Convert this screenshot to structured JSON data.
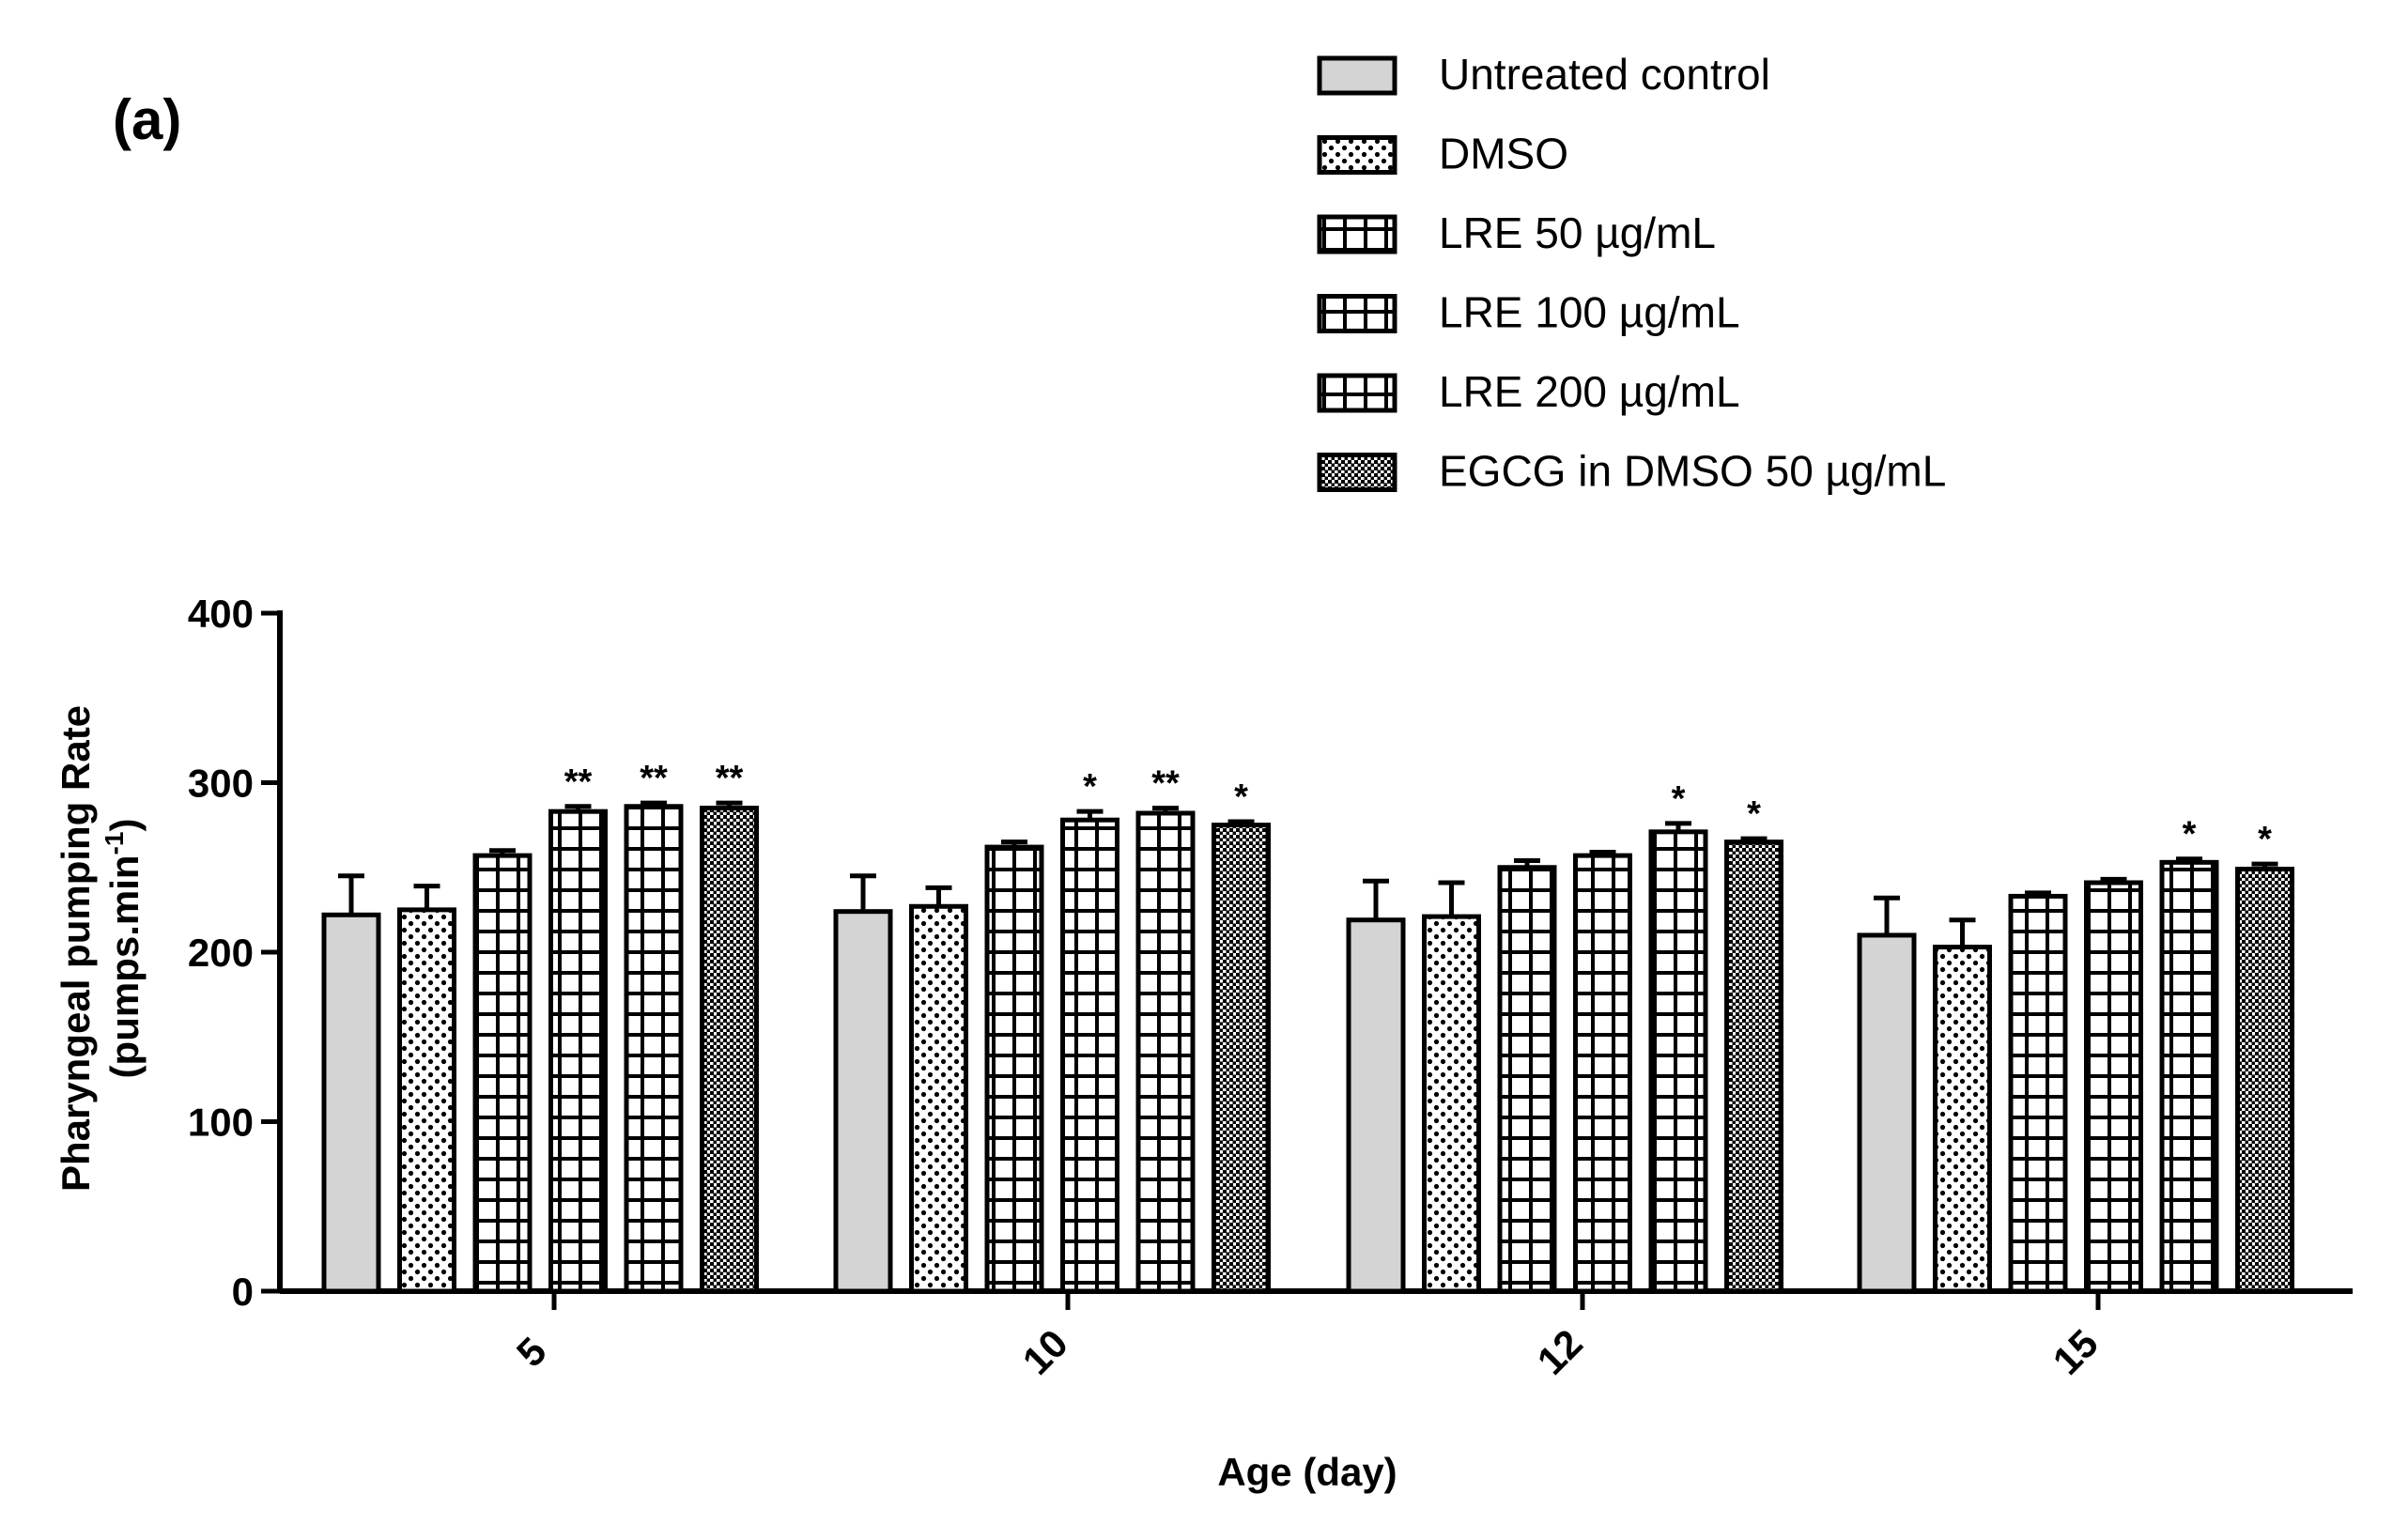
{
  "panel_label": "(a)",
  "chart_data": {
    "type": "bar",
    "title": "",
    "xlabel": "Age (day)",
    "ylabel_line1": "Pharyngeal pumping Rate",
    "ylabel_line2_main": "(pumps.min",
    "ylabel_line2_sup": "-1",
    "ylabel_line2_end": ")",
    "ylim": [
      0,
      400
    ],
    "yticks": [
      "0",
      "100",
      "200",
      "300",
      "400"
    ],
    "categories": [
      "5",
      "10",
      "12",
      "15"
    ],
    "series": [
      {
        "name": "Untreated control",
        "pattern": "solid",
        "values": [
          222,
          224,
          219,
          210
        ],
        "errors": [
          23,
          21,
          23,
          22
        ],
        "sig": [
          "",
          "",
          "",
          ""
        ]
      },
      {
        "name": "DMSO",
        "pattern": "dots",
        "values": [
          225,
          227,
          221,
          203
        ],
        "errors": [
          14,
          11,
          20,
          16
        ],
        "sig": [
          "",
          "",
          "",
          ""
        ]
      },
      {
        "name": "LRE 50 µg/mL",
        "pattern": "grid",
        "values": [
          257,
          262,
          250,
          233
        ],
        "errors": [
          3,
          3,
          4,
          2
        ],
        "sig": [
          "",
          "",
          "",
          ""
        ]
      },
      {
        "name": "LRE 100 µg/mL",
        "pattern": "grid",
        "values": [
          283,
          278,
          257,
          241
        ],
        "errors": [
          3,
          5,
          2,
          2
        ],
        "sig": [
          "**",
          "*",
          "",
          ""
        ]
      },
      {
        "name": "LRE 200 µg/mL",
        "pattern": "grid",
        "values": [
          286,
          282,
          271,
          253
        ],
        "errors": [
          2,
          3,
          5,
          2
        ],
        "sig": [
          "**",
          "**",
          "*",
          "*"
        ]
      },
      {
        "name": "EGCG in DMSO 50 µg/mL",
        "pattern": "dense",
        "values": [
          285,
          275,
          265,
          249
        ],
        "errors": [
          3,
          2,
          2,
          3
        ],
        "sig": [
          "**",
          "*",
          "*",
          "*"
        ]
      }
    ],
    "legend_position": "top-right",
    "colors": {
      "solid_fill": "#d4d4d4",
      "axis": "#000000",
      "background": "#ffffff"
    }
  }
}
